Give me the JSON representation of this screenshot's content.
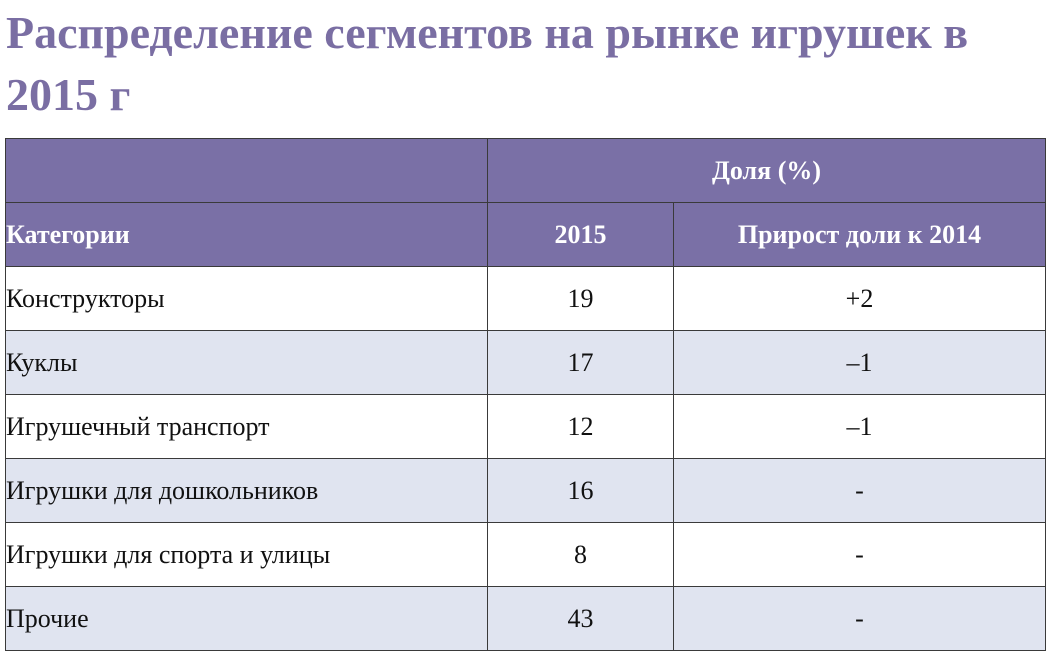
{
  "page": {
    "title": "Распределение сегментов на рынке игрушек в 2015 г"
  },
  "table": {
    "group_header": "Доля (%)",
    "columns": [
      "Категории",
      "2015",
      "Прирост доли к 2014"
    ],
    "rows": [
      {
        "category": "Конструкторы",
        "share_2015": "19",
        "growth": "+2"
      },
      {
        "category": "Куклы",
        "share_2015": "17",
        "growth": "–1"
      },
      {
        "category": "Игрушечный транспорт",
        "share_2015": "12",
        "growth": "–1"
      },
      {
        "category": "Игрушки для дошкольников",
        "share_2015": "16",
        "growth": "-"
      },
      {
        "category": "Игрушки для спорта и улицы",
        "share_2015": "8",
        "growth": "-"
      },
      {
        "category": "Прочие",
        "share_2015": "43",
        "growth": "-"
      }
    ]
  },
  "colors": {
    "title": "#7a6ea3",
    "header_bg": "#7a70a6",
    "header_text": "#ffffff",
    "row_alt_bg": "#e0e4f0",
    "border": "#3a3a3a"
  }
}
